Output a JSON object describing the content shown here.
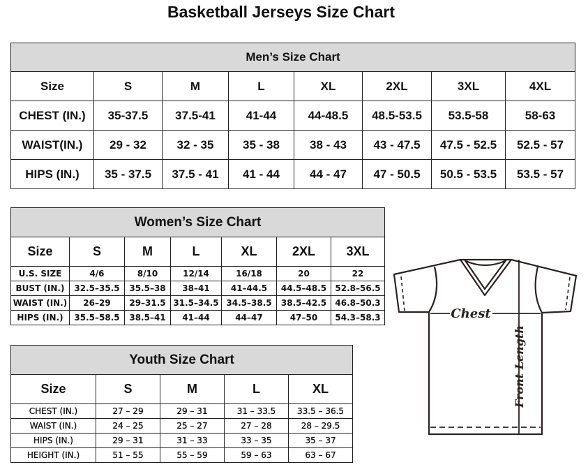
{
  "title": "Basketball Jerseys Size Chart",
  "men": {
    "heading": "Men’s Size Chart",
    "rows": [
      [
        "Size",
        "S",
        "M",
        "L",
        "XL",
        "2XL",
        "3XL",
        "4XL"
      ],
      [
        "CHEST (IN.)",
        "35-37.5",
        "37.5-41",
        "41-44",
        "44-48.5",
        "48.5-53.5",
        "53.5-58",
        "58-63"
      ],
      [
        "WAIST(IN.)",
        "29 - 32",
        "32 - 35",
        "35 - 38",
        "38 - 43",
        "43 - 47.5",
        "47.5 - 52.5",
        "52.5 - 57"
      ],
      [
        "HIPS (IN.)",
        "35 - 37.5",
        "37.5 - 41",
        "41 - 44",
        "44 - 47",
        "47 - 50.5",
        "50.5 - 53.5",
        "53.5 - 57"
      ]
    ]
  },
  "women": {
    "heading": "Women’s Size Chart",
    "rows": [
      [
        "Size",
        "S",
        "M",
        "L",
        "XL",
        "2XL",
        "3XL"
      ],
      [
        "U.S. SIZE",
        "4/6",
        "8/10",
        "12/14",
        "16/18",
        "20",
        "22"
      ],
      [
        "BUST (IN.)",
        "32.5–35.5",
        "35.5–38",
        "38–41",
        "41–44.5",
        "44.5–48.5",
        "52.8–56.5"
      ],
      [
        "WAIST (IN.)",
        "26–29",
        "29–31.5",
        "31.5–34.5",
        "34.5–38.5",
        "38.5–42.5",
        "46.8–50.3"
      ],
      [
        "HIPS (IN.)",
        "35.5–58.5",
        "38.5–41",
        "41–44",
        "44–47",
        "47–50",
        "54.3–58.3"
      ]
    ]
  },
  "youth": {
    "heading": "Youth Size Chart",
    "rows": [
      [
        "Size",
        "S",
        "M",
        "L",
        "XL"
      ],
      [
        "CHEST (IN.)",
        "27 – 29",
        "29 – 31",
        "31 – 33.5",
        "33.5 – 36.5"
      ],
      [
        "WAIST (IN.)",
        "24 – 25",
        "25 – 27",
        "27 – 28",
        "28 – 29.5"
      ],
      [
        "HIPS (IN.)",
        "29 – 31",
        "31 – 33",
        "33 – 35",
        "35 – 37"
      ],
      [
        "HEIGHT (IN.)",
        "51 – 55",
        "55 – 59",
        "59 – 63",
        "63 – 67"
      ]
    ]
  },
  "diagram": {
    "chest_label": "Chest",
    "length_label": "Front Length",
    "line_color": "#2b2220"
  }
}
